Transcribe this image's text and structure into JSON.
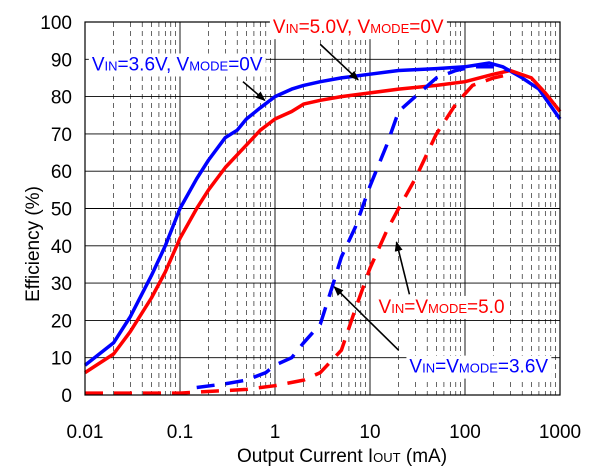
{
  "chart_data": {
    "type": "line",
    "x_scale": "log",
    "xlim": [
      0.01,
      1000
    ],
    "ylim": [
      0,
      100
    ],
    "x_ticks": [
      "0.01",
      "0.1",
      "1",
      "10",
      "100",
      "1000"
    ],
    "y_ticks": [
      "0",
      "10",
      "20",
      "30",
      "40",
      "50",
      "60",
      "70",
      "80",
      "90",
      "100"
    ],
    "grid": true,
    "xlabel": {
      "prefix": "Output Current I",
      "sub": "OUT",
      "suffix": " (mA)"
    },
    "ylabel": "Efficiency  (%)",
    "series": [
      {
        "color": "#0000ff",
        "dash": false,
        "points": [
          [
            0.01,
            8
          ],
          [
            0.02,
            14
          ],
          [
            0.03,
            21
          ],
          [
            0.05,
            32
          ],
          [
            0.07,
            40
          ],
          [
            0.1,
            50
          ],
          [
            0.15,
            58
          ],
          [
            0.2,
            63
          ],
          [
            0.3,
            69
          ],
          [
            0.4,
            71
          ],
          [
            0.5,
            74
          ],
          [
            0.7,
            77
          ],
          [
            1,
            80
          ],
          [
            1.5,
            82
          ],
          [
            2,
            83
          ],
          [
            3,
            84
          ],
          [
            5,
            85
          ],
          [
            10,
            86
          ],
          [
            20,
            87
          ],
          [
            50,
            87.5
          ],
          [
            100,
            88
          ],
          [
            180,
            89
          ],
          [
            250,
            88
          ],
          [
            400,
            85
          ],
          [
            600,
            82
          ],
          [
            1000,
            74
          ]
        ]
      },
      {
        "color": "#ff0000",
        "dash": false,
        "points": [
          [
            0.01,
            6
          ],
          [
            0.02,
            11
          ],
          [
            0.03,
            17
          ],
          [
            0.05,
            26
          ],
          [
            0.07,
            33
          ],
          [
            0.1,
            42
          ],
          [
            0.15,
            50
          ],
          [
            0.2,
            55
          ],
          [
            0.3,
            61
          ],
          [
            0.5,
            67
          ],
          [
            0.7,
            71
          ],
          [
            1,
            74
          ],
          [
            1.5,
            76
          ],
          [
            2,
            78
          ],
          [
            3,
            79
          ],
          [
            5,
            80
          ],
          [
            10,
            81
          ],
          [
            20,
            82
          ],
          [
            50,
            83
          ],
          [
            100,
            84
          ],
          [
            200,
            86
          ],
          [
            300,
            87
          ],
          [
            500,
            85
          ],
          [
            700,
            81
          ],
          [
            1000,
            76
          ]
        ]
      },
      {
        "color": "#0000ff",
        "dash": true,
        "points": [
          [
            0.15,
            2
          ],
          [
            0.3,
            3
          ],
          [
            0.5,
            4
          ],
          [
            0.8,
            6
          ],
          [
            1,
            8
          ],
          [
            1.5,
            10
          ],
          [
            2,
            14
          ],
          [
            3,
            19
          ],
          [
            4,
            29
          ],
          [
            5,
            37
          ],
          [
            7,
            45
          ],
          [
            10,
            56
          ],
          [
            15,
            67
          ],
          [
            20,
            76
          ],
          [
            30,
            80
          ],
          [
            50,
            85
          ],
          [
            80,
            87
          ],
          [
            120,
            88
          ],
          [
            200,
            88
          ],
          [
            300,
            87
          ]
        ]
      },
      {
        "color": "#ff0000",
        "dash": true,
        "points": [
          [
            0.01,
            0.5
          ],
          [
            0.1,
            0.5
          ],
          [
            0.5,
            1.5
          ],
          [
            1,
            2.5
          ],
          [
            2,
            4
          ],
          [
            3,
            6
          ],
          [
            5,
            12
          ],
          [
            7,
            23
          ],
          [
            10,
            34
          ],
          [
            15,
            44
          ],
          [
            20,
            50
          ],
          [
            30,
            58
          ],
          [
            50,
            70
          ],
          [
            80,
            78
          ],
          [
            120,
            83
          ],
          [
            200,
            85
          ],
          [
            300,
            86
          ]
        ]
      }
    ],
    "annotations": [
      {
        "color": "#ff0000",
        "parts": [
          [
            "V",
            ""
          ],
          [
            "IN",
            "sub"
          ],
          [
            "=5.0V, V",
            ""
          ],
          [
            "MODE",
            "sub"
          ],
          [
            "=0V",
            ""
          ]
        ],
        "text_anchor": "start",
        "text_at": [
          0.95,
          97
        ],
        "arrow_from": [
          3.0,
          94
        ],
        "arrow_to": [
          7.5,
          84.5
        ]
      },
      {
        "color": "#0000ff",
        "parts": [
          [
            "V",
            ""
          ],
          [
            "IN",
            "sub"
          ],
          [
            "=3.6V, V",
            ""
          ],
          [
            "MODE",
            "sub"
          ],
          [
            "=0V",
            ""
          ]
        ],
        "text_anchor": "start",
        "text_at": [
          0.0118,
          87
        ],
        "arrow_from": [
          0.46,
          84
        ],
        "arrow_to": [
          0.78,
          79
        ]
      },
      {
        "color": "#ff0000",
        "parts": [
          [
            "V",
            ""
          ],
          [
            "IN",
            "sub"
          ],
          [
            "=V",
            ""
          ],
          [
            "MODE",
            "sub"
          ],
          [
            "=5.0",
            ""
          ]
        ],
        "text_anchor": "start",
        "text_at": [
          12.3,
          22
        ],
        "arrow_from": [
          26,
          27
        ],
        "arrow_to": [
          19,
          41
        ]
      },
      {
        "color": "#0000ff",
        "parts": [
          [
            "V",
            ""
          ],
          [
            "IN",
            "sub"
          ],
          [
            "=V",
            ""
          ],
          [
            "MODE",
            "sub"
          ],
          [
            "=3.6V",
            ""
          ]
        ],
        "text_anchor": "start",
        "text_at": [
          26,
          6
        ],
        "arrow_from": [
          20,
          12
        ],
        "arrow_to": [
          4.2,
          29
        ]
      }
    ]
  }
}
